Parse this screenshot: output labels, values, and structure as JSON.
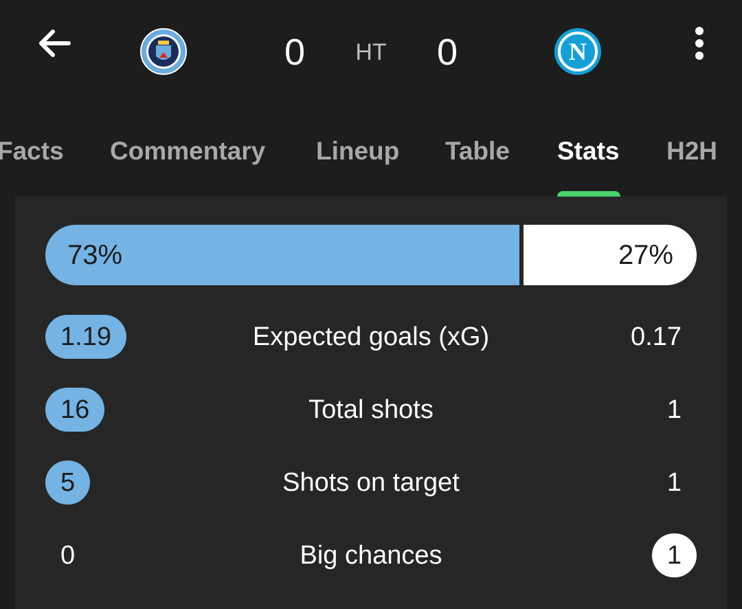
{
  "header": {
    "home_team": {
      "score": "0",
      "crest": "manchester-city-crest",
      "crest_text": "MANCHESTER CITY"
    },
    "away_team": {
      "score": "0",
      "crest": "napoli-crest",
      "crest_letter": "N"
    },
    "status": "HT",
    "icons": {
      "back": "arrow-left-icon",
      "menu": "more-vertical-icon"
    }
  },
  "tabs": [
    {
      "label": "Facts",
      "active": false
    },
    {
      "label": "Commentary",
      "active": false
    },
    {
      "label": "Lineup",
      "active": false
    },
    {
      "label": "Table",
      "active": false
    },
    {
      "label": "Stats",
      "active": true
    },
    {
      "label": "H2H",
      "active": false
    }
  ],
  "stats": {
    "possession": {
      "home": "73%",
      "away": "27%",
      "home_fraction": 0.73
    },
    "rows": [
      {
        "label": "Expected goals (xG)",
        "home": "1.19",
        "away": "0.17",
        "leader": "home"
      },
      {
        "label": "Total shots",
        "home": "16",
        "away": "1",
        "leader": "home"
      },
      {
        "label": "Shots on target",
        "home": "5",
        "away": "1",
        "leader": "home"
      },
      {
        "label": "Big chances",
        "home": "0",
        "away": "1",
        "leader": "away"
      }
    ]
  },
  "colors": {
    "home": "#74b3e3",
    "away": "#ffffff",
    "accent": "#4bd16b",
    "background": "#1d1d1d",
    "card": "#262626"
  }
}
